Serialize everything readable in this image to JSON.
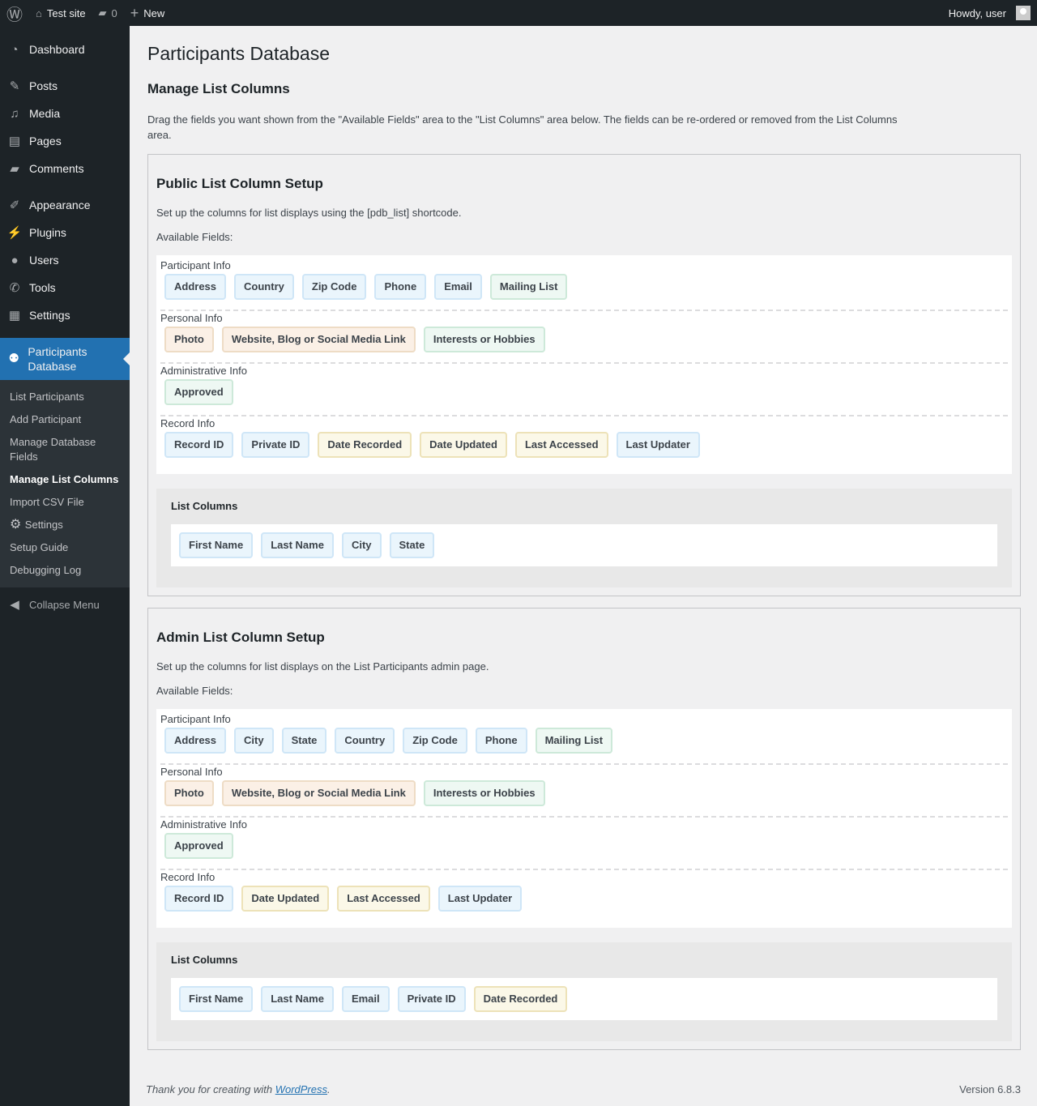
{
  "adminbar": {
    "site": "Test site",
    "comments": "0",
    "new": "New",
    "howdy": "Howdy, user"
  },
  "sidebar": {
    "items": [
      {
        "label": "Dashboard",
        "icon": "dashboard-icon",
        "glyph": "◔"
      },
      {
        "label": "Posts",
        "icon": "pin-icon",
        "glyph": "✎",
        "gap": true
      },
      {
        "label": "Media",
        "icon": "media-icon",
        "glyph": "♫"
      },
      {
        "label": "Pages",
        "icon": "pages-icon",
        "glyph": "▤"
      },
      {
        "label": "Comments",
        "icon": "comment-icon",
        "glyph": "▰"
      },
      {
        "label": "Appearance",
        "icon": "brush-icon",
        "glyph": "✐",
        "gap": true
      },
      {
        "label": "Plugins",
        "icon": "plugin-icon",
        "glyph": "⚡"
      },
      {
        "label": "Users",
        "icon": "user-icon",
        "glyph": "●"
      },
      {
        "label": "Tools",
        "icon": "wrench-icon",
        "glyph": "✆"
      },
      {
        "label": "Settings",
        "icon": "settings-icon",
        "glyph": "▦"
      }
    ],
    "active": {
      "label": "Participants Database",
      "icon": "participants-icon",
      "glyph": "⚉"
    },
    "sub": [
      "List Participants",
      "Add Participant",
      "Manage Database Fields",
      "Manage List Columns",
      "Import CSV File",
      "Settings",
      "Setup Guide",
      "Debugging Log"
    ],
    "current": "Manage List Columns",
    "collapse": "Collapse Menu"
  },
  "page": {
    "title": "Participants Database",
    "subtitle": "Manage List Columns",
    "intro": "Drag the fields you want shown from the \"Available Fields\" area to the \"List Columns\" area below. The fields can be re-ordered or removed from the List Columns area."
  },
  "sections": [
    {
      "title": "Public List Column Setup",
      "desc": "Set up the columns for list displays using the [pdb_list] shortcode.",
      "available": "Available Fields:",
      "groups": [
        {
          "label": "Participant Info",
          "fields": [
            [
              "Address",
              "blue"
            ],
            [
              "Country",
              "blue"
            ],
            [
              "Zip Code",
              "blue"
            ],
            [
              "Phone",
              "blue"
            ],
            [
              "Email",
              "blue"
            ],
            [
              "Mailing List",
              "green"
            ]
          ]
        },
        {
          "label": "Personal Info",
          "fields": [
            [
              "Photo",
              "orange"
            ],
            [
              "Website, Blog or Social Media Link",
              "orange"
            ],
            [
              "Interests or Hobbies",
              "green"
            ]
          ]
        },
        {
          "label": "Administrative Info",
          "fields": [
            [
              "Approved",
              "green"
            ]
          ]
        },
        {
          "label": "Record Info",
          "fields": [
            [
              "Record ID",
              "blue"
            ],
            [
              "Private ID",
              "blue"
            ],
            [
              "Date Recorded",
              "yellow"
            ],
            [
              "Date Updated",
              "yellow"
            ],
            [
              "Last Accessed",
              "yellow"
            ],
            [
              "Last Updater",
              "blue"
            ]
          ]
        }
      ],
      "list_title": "List Columns",
      "columns": [
        [
          "First Name",
          "blue"
        ],
        [
          "Last Name",
          "blue"
        ],
        [
          "City",
          "blue"
        ],
        [
          "State",
          "blue"
        ]
      ]
    },
    {
      "title": "Admin List Column Setup",
      "desc": "Set up the columns for list displays on the List Participants admin page.",
      "available": "Available Fields:",
      "groups": [
        {
          "label": "Participant Info",
          "fields": [
            [
              "Address",
              "blue"
            ],
            [
              "City",
              "blue"
            ],
            [
              "State",
              "blue"
            ],
            [
              "Country",
              "blue"
            ],
            [
              "Zip Code",
              "blue"
            ],
            [
              "Phone",
              "blue"
            ],
            [
              "Mailing List",
              "green"
            ]
          ]
        },
        {
          "label": "Personal Info",
          "fields": [
            [
              "Photo",
              "orange"
            ],
            [
              "Website, Blog or Social Media Link",
              "orange"
            ],
            [
              "Interests or Hobbies",
              "green"
            ]
          ]
        },
        {
          "label": "Administrative Info",
          "fields": [
            [
              "Approved",
              "green"
            ]
          ]
        },
        {
          "label": "Record Info",
          "fields": [
            [
              "Record ID",
              "blue"
            ],
            [
              "Date Updated",
              "yellow"
            ],
            [
              "Last Accessed",
              "yellow"
            ],
            [
              "Last Updater",
              "blue"
            ]
          ]
        }
      ],
      "list_title": "List Columns",
      "columns": [
        [
          "First Name",
          "blue"
        ],
        [
          "Last Name",
          "blue"
        ],
        [
          "Email",
          "blue"
        ],
        [
          "Private ID",
          "blue"
        ],
        [
          "Date Recorded",
          "yellow"
        ]
      ]
    }
  ],
  "footer": {
    "thanks": "Thank you for creating with ",
    "link": "WordPress",
    "period": ".",
    "version": "Version 6.8.3"
  }
}
